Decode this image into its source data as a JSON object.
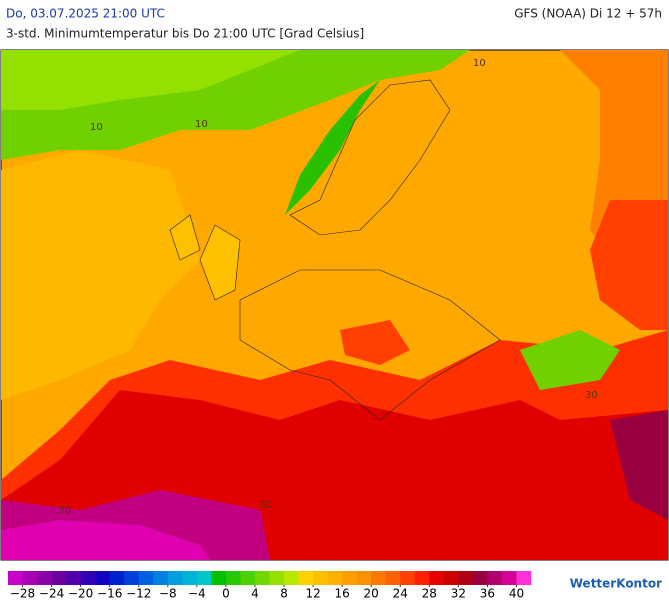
{
  "header": {
    "datetime": "Do, 03.07.2025 21:00 UTC",
    "model": "GFS (NOAA) Di 12 + 57h",
    "subtitle": "3-std. Minimumtemperatur bis Do 21:00 UTC [Grad Celsius]"
  },
  "map": {
    "contour_labels": [
      "10",
      "10",
      "10",
      "30",
      "30",
      "30"
    ]
  },
  "colorbar": {
    "range": [
      -30,
      42
    ],
    "colors": [
      "#c800c8",
      "#a800b4",
      "#8c00a8",
      "#6e00a0",
      "#5000a8",
      "#3200b4",
      "#1400c0",
      "#0020d0",
      "#0040dc",
      "#0060e0",
      "#0080e0",
      "#00a0e0",
      "#00b4d8",
      "#00c8c8",
      "#00c000",
      "#28c800",
      "#4cd000",
      "#70d800",
      "#94e000",
      "#b8e800",
      "#ffd200",
      "#ffc000",
      "#ffb000",
      "#ffa000",
      "#ff9000",
      "#ff7800",
      "#ff6000",
      "#ff4000",
      "#ff2000",
      "#e80000",
      "#cc0000",
      "#b00018",
      "#980040",
      "#b00070",
      "#d40098",
      "#ff30d8"
    ],
    "ticks": [
      {
        "value": -28,
        "label": "−28"
      },
      {
        "value": -24,
        "label": "−24"
      },
      {
        "value": -20,
        "label": "−20"
      },
      {
        "value": -16,
        "label": "−16"
      },
      {
        "value": -12,
        "label": "−12"
      },
      {
        "value": -8,
        "label": "−8"
      },
      {
        "value": -4,
        "label": "−4"
      },
      0,
      4,
      8,
      12,
      16,
      20,
      24,
      28,
      32,
      36,
      40
    ]
  },
  "logo": "WetterKontor"
}
